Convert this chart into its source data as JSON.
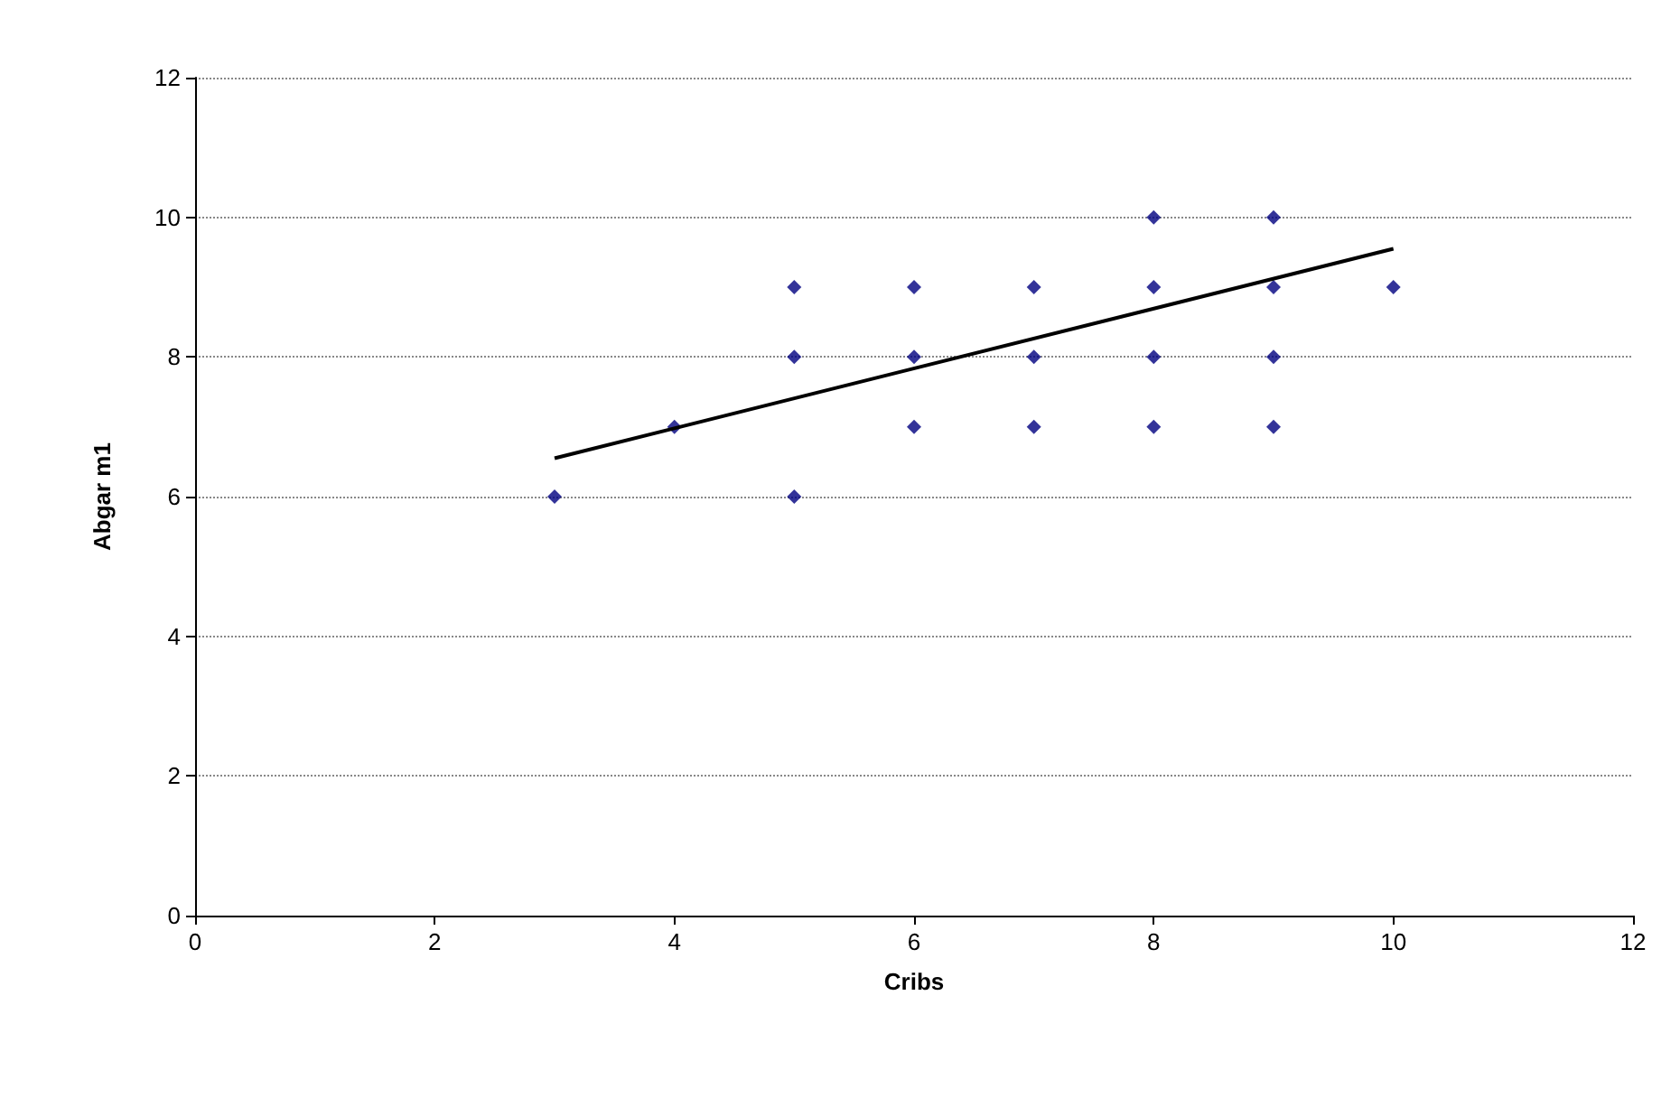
{
  "chart_data": {
    "type": "scatter",
    "xlabel": "Cribs",
    "ylabel": "Abgar m1",
    "xlim": [
      0,
      12
    ],
    "ylim": [
      0,
      12
    ],
    "xticks": [
      0,
      2,
      4,
      6,
      8,
      10,
      12
    ],
    "yticks": [
      0,
      2,
      4,
      6,
      8,
      10,
      12
    ],
    "grid": "y",
    "marker": "diamond",
    "series": [
      {
        "color": "#000080",
        "x": [
          3,
          4,
          5,
          5,
          5,
          6,
          6,
          6,
          7,
          7,
          7,
          8,
          8,
          8,
          8,
          9,
          9,
          9,
          9,
          10
        ],
        "values": [
          6,
          7,
          9,
          8,
          6,
          9,
          8,
          7,
          9,
          8,
          7,
          10,
          9,
          8,
          7,
          10,
          9,
          8,
          7,
          9
        ]
      },
      {
        "type": "line",
        "color": "#000000",
        "marker": "none",
        "line_style": "solid",
        "x": [
          3,
          10
        ],
        "values": [
          6.55,
          9.55
        ]
      }
    ]
  }
}
